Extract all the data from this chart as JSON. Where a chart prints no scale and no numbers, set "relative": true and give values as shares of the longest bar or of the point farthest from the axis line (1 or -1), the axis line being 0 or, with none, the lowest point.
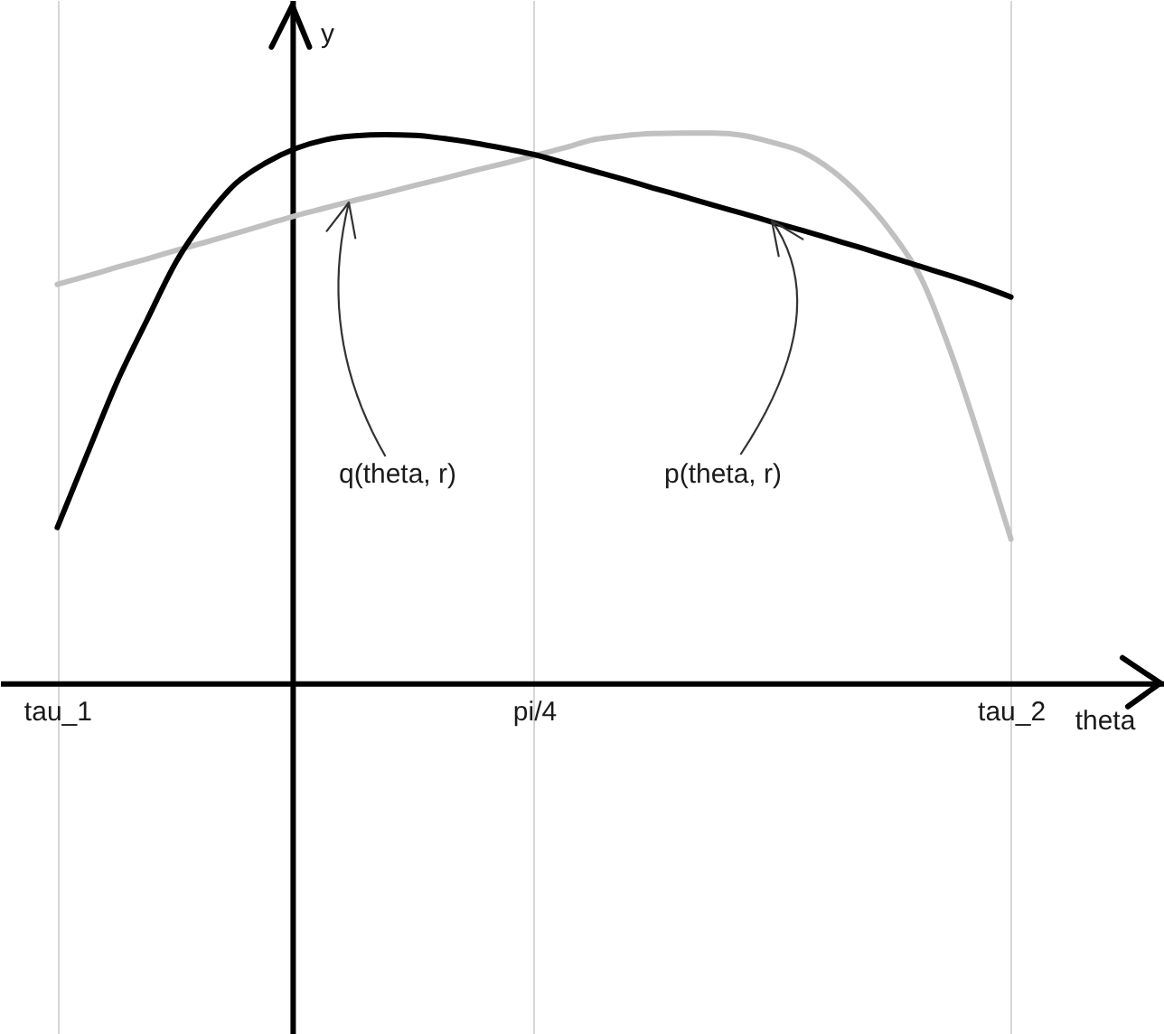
{
  "chart_data": {
    "type": "line",
    "relative": true,
    "xlabel": "theta",
    "ylabel": "y",
    "categories": [
      "tau_1",
      null,
      null,
      null,
      null,
      null,
      null,
      null,
      null,
      null,
      null,
      null,
      null,
      null,
      null,
      null,
      "pi/4",
      null,
      null,
      null,
      null,
      null,
      null,
      null,
      null,
      null,
      null,
      null,
      null,
      null,
      null,
      null,
      "tau_2"
    ],
    "grid": "x",
    "line_style": "solid",
    "series": [
      {
        "color": "#c0c0c0",
        "values": [
          0.725,
          0.74,
          0.756,
          0.771,
          0.787,
          0.802,
          0.818,
          0.834,
          0.85,
          0.864,
          0.878,
          0.891,
          0.905,
          0.918,
          0.932,
          0.945,
          0.959,
          0.973,
          0.988,
          0.995,
          0.999,
          1.0,
          1.0,
          0.996,
          0.983,
          0.966,
          0.932,
          0.883,
          0.819,
          0.735,
          0.599,
          0.436,
          0.262
        ]
      },
      {
        "color": "#000000",
        "values": [
          0.283,
          0.416,
          0.547,
          0.659,
          0.767,
          0.847,
          0.909,
          0.946,
          0.972,
          0.988,
          0.995,
          0.997,
          0.996,
          0.99,
          0.982,
          0.972,
          0.961,
          0.946,
          0.931,
          0.916,
          0.9,
          0.885,
          0.869,
          0.854,
          0.838,
          0.823,
          0.807,
          0.791,
          0.774,
          0.757,
          0.74,
          0.722,
          0.702
        ]
      }
    ],
    "annotations": [
      "q(theta, r)",
      "p(theta, r)"
    ]
  }
}
